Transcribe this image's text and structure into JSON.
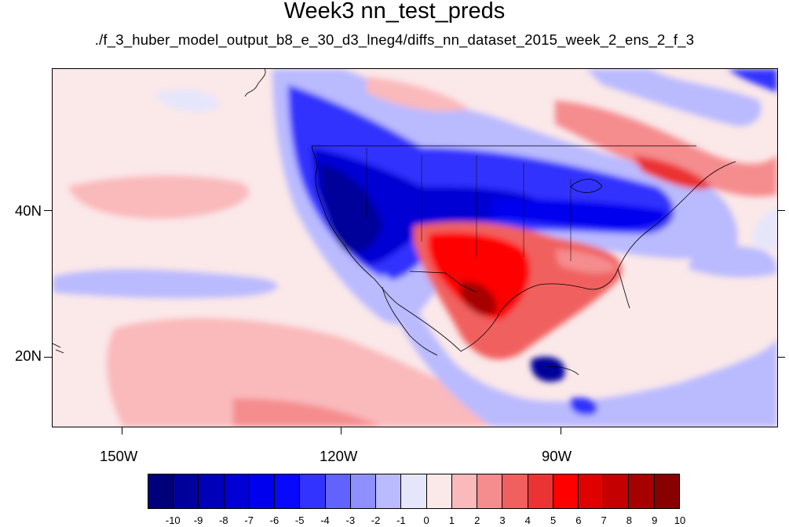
{
  "title": "Week3 nn_test_preds",
  "subtitle": "./f_3_huber_model_output_b8_e_30_d3_lneg4/diffs_nn_dataset_2015_week_2_ens_2_f_3",
  "map": {
    "lon_range": [
      -160,
      -61
    ],
    "lat_range": [
      11,
      60
    ],
    "lon_labels": [
      "150W",
      "120W",
      "90W"
    ],
    "lat_labels": [
      "40N",
      "20N"
    ]
  },
  "colorbar": {
    "labels": [
      "-10",
      "-9",
      "-8",
      "-7",
      "-6",
      "-5",
      "-4",
      "-3",
      "-2",
      "-1",
      "0",
      "1",
      "2",
      "3",
      "4",
      "5",
      "6",
      "7",
      "8",
      "9",
      "10"
    ],
    "colors": [
      "#00007a",
      "#00009a",
      "#0000b8",
      "#0000d4",
      "#0000ee",
      "#0808ff",
      "#3333ff",
      "#6262ff",
      "#8f8fff",
      "#babaff",
      "#e6e6fb",
      "#fbe8e9",
      "#fab9bb",
      "#f58c8e",
      "#f0605f",
      "#eb3333",
      "#ff0000",
      "#e00000",
      "#c40000",
      "#a60000",
      "#880000"
    ]
  },
  "regions": [
    {
      "name": "west-us-negative",
      "value": -9
    },
    {
      "name": "central-us-negative",
      "value": -8
    },
    {
      "name": "great-lakes-negative",
      "value": -6
    },
    {
      "name": "texas-southern-plains-positive",
      "value": 7
    },
    {
      "name": "southeast-positive",
      "value": 4
    },
    {
      "name": "canada-east-positive",
      "value": 4
    },
    {
      "name": "gulf-of-mexico-negative",
      "value": -3
    },
    {
      "name": "pacific-subtropics-positive",
      "value": 2
    },
    {
      "name": "caribbean-negative",
      "value": -7
    }
  ]
}
